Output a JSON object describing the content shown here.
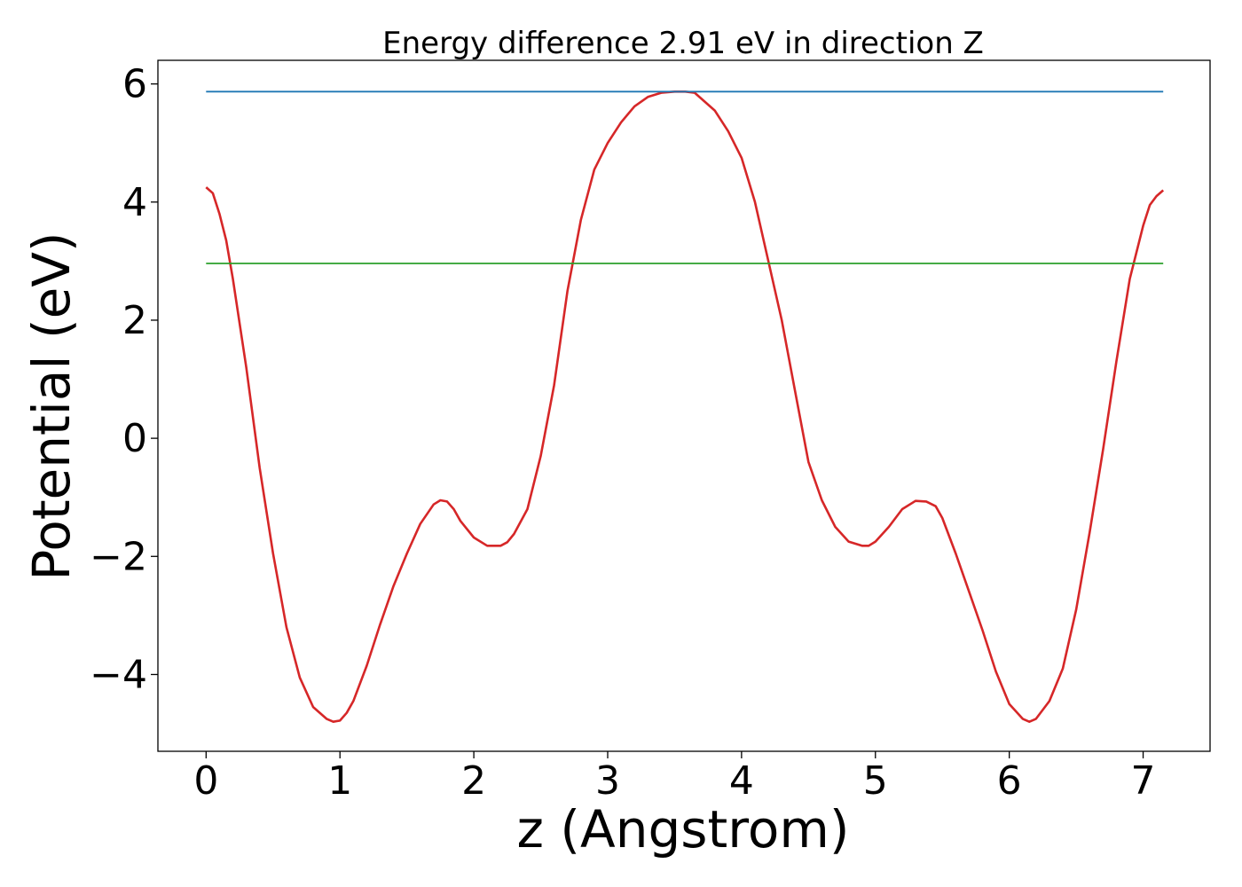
{
  "chart_data": {
    "type": "line",
    "title": "Energy difference 2.91 eV in direction Z",
    "xlabel": "z (Angstrom)",
    "ylabel": "Potential (eV)",
    "xlim": [
      -0.36,
      7.5
    ],
    "ylim": [
      -5.3,
      6.4
    ],
    "x_ticks": [
      0,
      1,
      2,
      3,
      4,
      5,
      6,
      7
    ],
    "x_tick_labels": [
      "0",
      "1",
      "2",
      "3",
      "4",
      "5",
      "6",
      "7"
    ],
    "y_ticks": [
      -4,
      -2,
      0,
      2,
      4,
      6
    ],
    "y_tick_labels": [
      "−4",
      "−2",
      "0",
      "2",
      "4",
      "6"
    ],
    "grid": false,
    "series": [
      {
        "color": "#d62728",
        "x": [
          0.0,
          0.05,
          0.1,
          0.15,
          0.2,
          0.3,
          0.4,
          0.5,
          0.6,
          0.7,
          0.8,
          0.9,
          0.95,
          1.0,
          1.05,
          1.1,
          1.2,
          1.3,
          1.4,
          1.5,
          1.6,
          1.7,
          1.75,
          1.8,
          1.85,
          1.9,
          2.0,
          2.1,
          2.2,
          2.25,
          2.3,
          2.4,
          2.5,
          2.6,
          2.7,
          2.8,
          2.9,
          3.0,
          3.1,
          3.2,
          3.3,
          3.4,
          3.5,
          3.58,
          3.65,
          3.8,
          3.9,
          4.0,
          4.1,
          4.2,
          4.3,
          4.4,
          4.5,
          4.6,
          4.7,
          4.8,
          4.9,
          4.95,
          5.0,
          5.1,
          5.2,
          5.3,
          5.38,
          5.45,
          5.5,
          5.6,
          5.7,
          5.8,
          5.9,
          6.0,
          6.1,
          6.15,
          6.2,
          6.3,
          6.4,
          6.5,
          6.6,
          6.7,
          6.8,
          6.9,
          7.0,
          7.05,
          7.1,
          7.15
        ],
        "y": [
          4.25,
          4.15,
          3.8,
          3.35,
          2.7,
          1.2,
          -0.5,
          -1.95,
          -3.2,
          -4.05,
          -4.55,
          -4.75,
          -4.8,
          -4.78,
          -4.65,
          -4.45,
          -3.85,
          -3.15,
          -2.5,
          -1.95,
          -1.45,
          -1.12,
          -1.05,
          -1.07,
          -1.2,
          -1.4,
          -1.68,
          -1.82,
          -1.82,
          -1.76,
          -1.62,
          -1.2,
          -0.3,
          0.9,
          2.5,
          3.7,
          4.55,
          5.0,
          5.35,
          5.62,
          5.78,
          5.85,
          5.87,
          5.87,
          5.85,
          5.55,
          5.2,
          4.75,
          4.0,
          3.0,
          2.0,
          0.8,
          -0.4,
          -1.05,
          -1.5,
          -1.75,
          -1.82,
          -1.82,
          -1.75,
          -1.5,
          -1.2,
          -1.06,
          -1.07,
          -1.15,
          -1.35,
          -1.95,
          -2.6,
          -3.25,
          -3.95,
          -4.5,
          -4.75,
          -4.8,
          -4.75,
          -4.45,
          -3.9,
          -2.9,
          -1.6,
          -0.2,
          1.3,
          2.7,
          3.6,
          3.95,
          4.1,
          4.2
        ]
      },
      {
        "color": "#1f77b4",
        "x": [
          0.0,
          7.15
        ],
        "y": [
          5.87,
          5.87
        ]
      },
      {
        "color": "#2ca02c",
        "x": [
          0.0,
          7.15
        ],
        "y": [
          2.96,
          2.96
        ]
      }
    ]
  }
}
